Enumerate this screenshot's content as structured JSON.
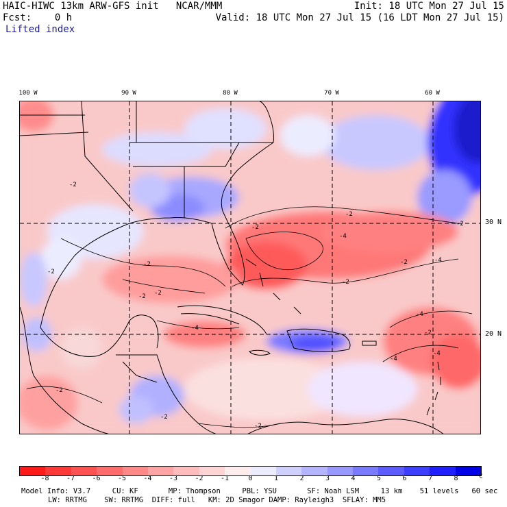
{
  "header": {
    "left_line1": "HAIC-HIWC 13km ARW-GFS init   NCAR/MMM",
    "left_line2": "Fcst:    0 h",
    "field_name": "Lifted index",
    "right_line1": "Init: 18 UTC Mon 27 Jul 15",
    "right_line2": "Valid: 18 UTC Mon 27 Jul 15 (16 LDT Mon 27 Jul 15)"
  },
  "axes": {
    "lon_labels": [
      "100 W",
      "90 W",
      "80 W",
      "70 W",
      "60 W"
    ],
    "lat_labels": [
      "30 N",
      "20 N"
    ]
  },
  "contour_labels": [
    "-2",
    "-2",
    "-2",
    "-2",
    "-2",
    "-2",
    "-2",
    "-2",
    "-2",
    "-4",
    "-4",
    "-4",
    "-4",
    "-4",
    "-2",
    "-2",
    "-4",
    "-2",
    "-2",
    "-2"
  ],
  "colorbar": {
    "ticks": [
      "-8",
      "-7",
      "-6",
      "-5",
      "-4",
      "-3",
      "-2",
      "-1",
      "0",
      "1",
      "2",
      "3",
      "4",
      "5",
      "6",
      "7",
      "8"
    ],
    "unit": "°C",
    "colors": [
      "#ff1a1a",
      "#ff3838",
      "#ff5252",
      "#ff6c6c",
      "#ff8888",
      "#ffa4a4",
      "#ffbcbc",
      "#ffd4d4",
      "#ffecec",
      "#ececff",
      "#d0d0ff",
      "#b4b4ff",
      "#9898ff",
      "#7a7aff",
      "#5c5cff",
      "#3e3eff",
      "#2020ff",
      "#0000e6"
    ]
  },
  "footer": {
    "line1": "Model Info: V3.7     CU: KF       MP: Thompson     PBL: YSU       SF: Noah LSM     13 km    51 levels   60 sec",
    "line2": "LW: RRTMG    SW: RRTMG  DIFF: full   KM: 2D Smagor DAMP: Rayleigh3  SFLAY: MM5"
  },
  "colors": {
    "land_border": "#000000",
    "grid_line": "#000000",
    "header_blue": "#1a1aa6"
  }
}
